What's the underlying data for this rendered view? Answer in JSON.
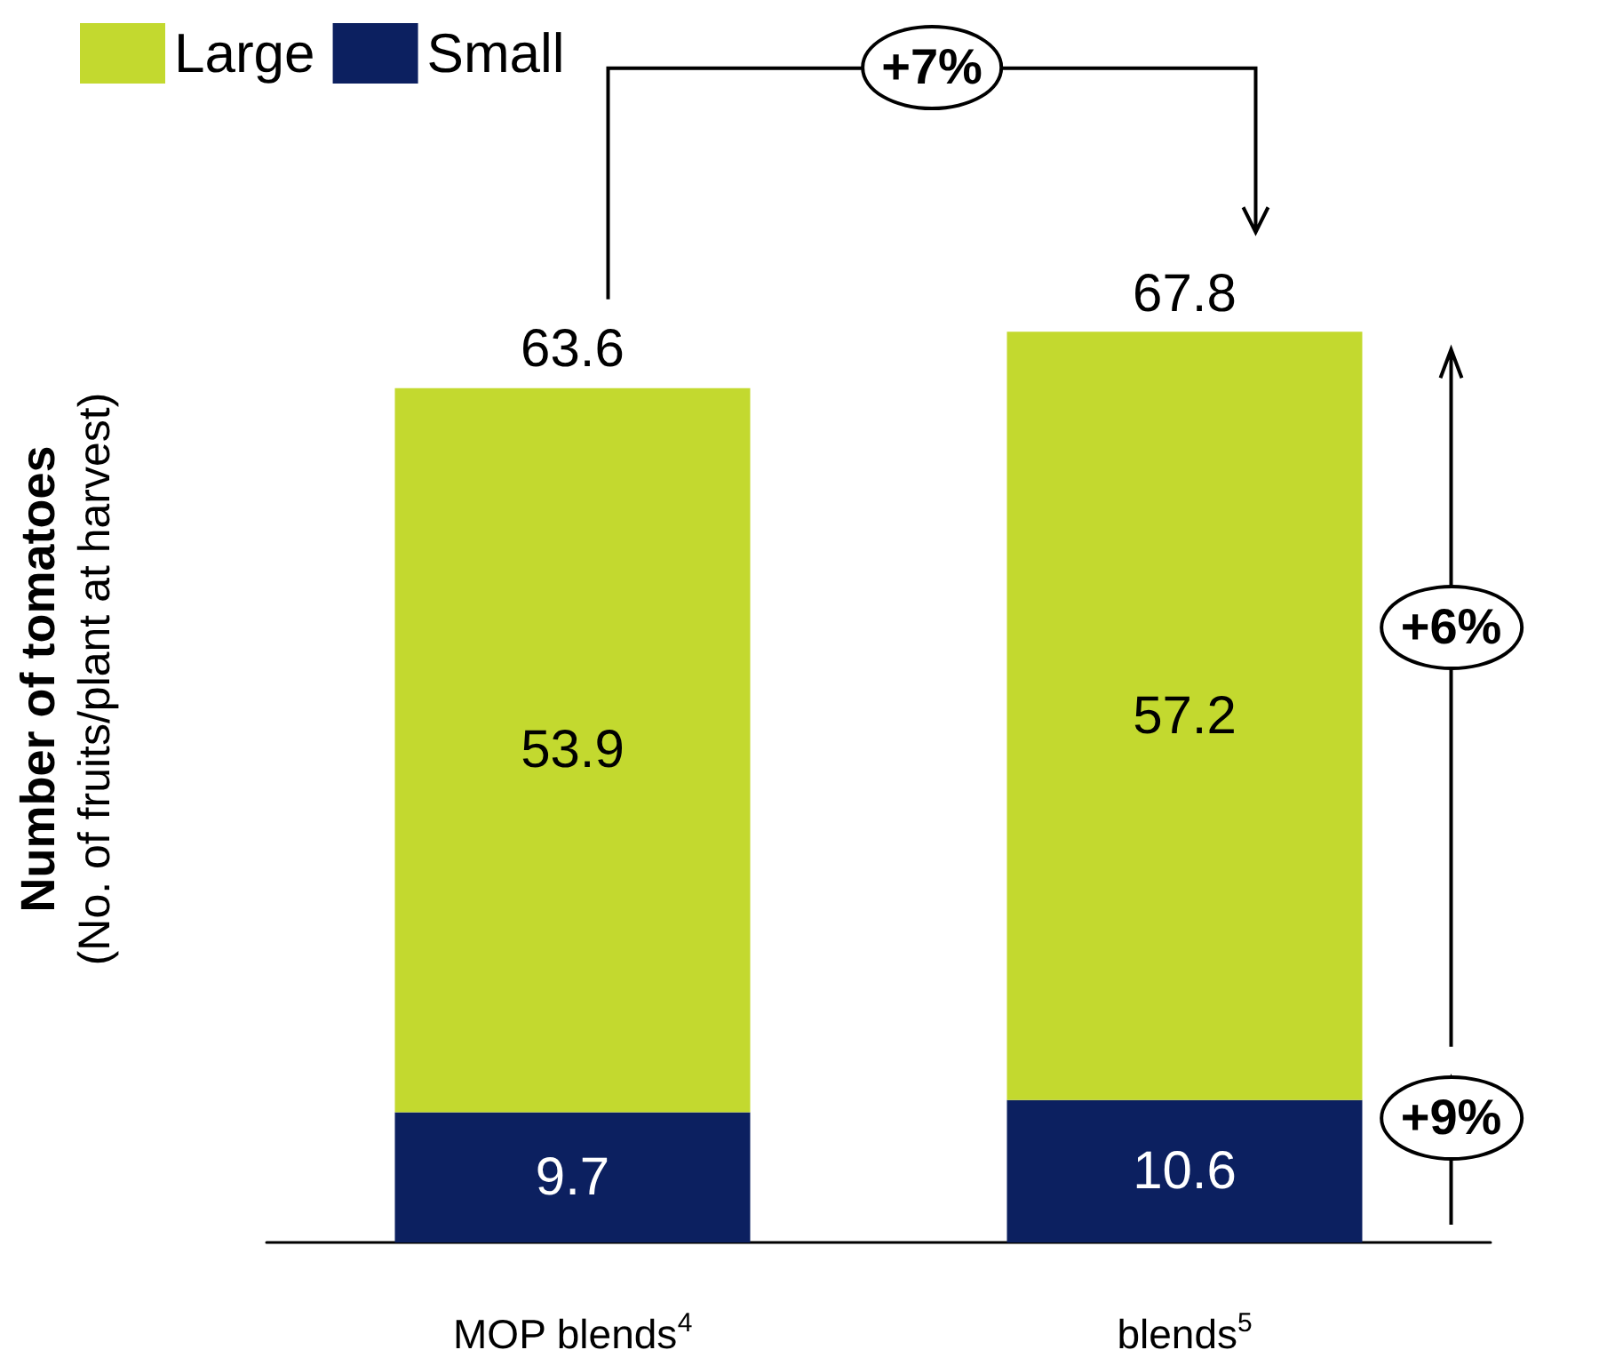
{
  "chart_data": {
    "type": "bar",
    "stacked": true,
    "ylabel": "Number of tomatoes\n(No. of fruits/plant at harvest)",
    "categories": [
      "MOP blends$^{4}$",
      "blends$^{5}$"
    ],
    "series": [
      {
        "name": "Small",
        "color": "#0c2060",
        "values": [
          9.7,
          10.6
        ]
      },
      {
        "name": "Large",
        "color": "#c3d92f",
        "values": [
          53.9,
          57.2
        ]
      }
    ],
    "data_labels": true,
    "totals": [
      "63.6",
      "67.8"
    ],
    "legend": "top left",
    "annotations": [
      "+7%",
      "+6%",
      "+9%"
    ]
  }
}
